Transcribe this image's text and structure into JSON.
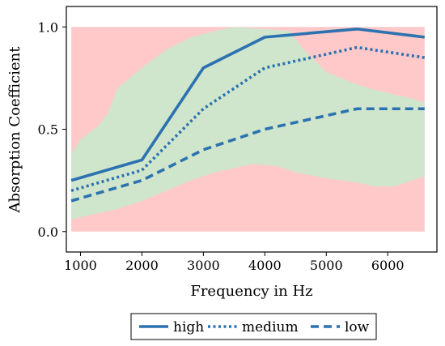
{
  "chart_data": {
    "type": "line",
    "xlabel": "Frequency in Hz",
    "ylabel": "Absorption Coefficient",
    "xlim": [
      770,
      6800
    ],
    "ylim": [
      -0.1,
      1.1
    ],
    "xticks": [
      1000,
      2000,
      3000,
      4000,
      5000,
      6000
    ],
    "yticks": [
      0.0,
      0.5,
      1.0
    ],
    "xtick_labels": [
      "1000",
      "2000",
      "3000",
      "4000",
      "5000",
      "6000"
    ],
    "ytick_labels": [
      "0.0",
      "0.5",
      "1.0"
    ],
    "grid": false,
    "legend_position": "bottom-center",
    "background_band": {
      "x_range": [
        850,
        6600
      ],
      "y_range": [
        0.0,
        1.0
      ],
      "color": "#ffc9c9"
    },
    "green_region": {
      "color": "#cfe6cc",
      "upper": [
        [
          850,
          0.38
        ],
        [
          1000,
          0.45
        ],
        [
          1300,
          0.52
        ],
        [
          1450,
          0.58
        ],
        [
          1600,
          0.7
        ],
        [
          2000,
          0.8
        ],
        [
          2400,
          0.89
        ],
        [
          2800,
          0.95
        ],
        [
          3200,
          0.98
        ],
        [
          3500,
          1.0
        ],
        [
          4000,
          0.99
        ],
        [
          4400,
          0.98
        ],
        [
          4600,
          0.9
        ],
        [
          5000,
          0.78
        ],
        [
          5400,
          0.73
        ],
        [
          5700,
          0.7
        ],
        [
          6100,
          0.67
        ],
        [
          6400,
          0.65
        ],
        [
          6600,
          0.63
        ]
      ],
      "lower": [
        [
          850,
          0.06
        ],
        [
          1000,
          0.07
        ],
        [
          1300,
          0.09
        ],
        [
          1450,
          0.1
        ],
        [
          1600,
          0.11
        ],
        [
          2000,
          0.15
        ],
        [
          2400,
          0.2
        ],
        [
          2800,
          0.25
        ],
        [
          3200,
          0.29
        ],
        [
          3500,
          0.31
        ],
        [
          3800,
          0.33
        ],
        [
          4200,
          0.32
        ],
        [
          4500,
          0.29
        ],
        [
          5000,
          0.26
        ],
        [
          5500,
          0.24
        ],
        [
          5800,
          0.22
        ],
        [
          6100,
          0.22
        ],
        [
          6400,
          0.25
        ],
        [
          6600,
          0.27
        ]
      ]
    },
    "series": [
      {
        "name": "high",
        "style": "solid",
        "color": "#2c72b0",
        "x": [
          850,
          2000,
          3000,
          4000,
          5500,
          6600
        ],
        "y": [
          0.25,
          0.35,
          0.8,
          0.95,
          0.99,
          0.95
        ]
      },
      {
        "name": "medium",
        "style": "dotted",
        "color": "#2c72b0",
        "x": [
          850,
          2000,
          3000,
          4000,
          5500,
          6600
        ],
        "y": [
          0.2,
          0.3,
          0.6,
          0.8,
          0.9,
          0.85
        ]
      },
      {
        "name": "low",
        "style": "dashed",
        "color": "#2c72b0",
        "x": [
          850,
          2000,
          3000,
          4000,
          5500,
          6600
        ],
        "y": [
          0.15,
          0.25,
          0.4,
          0.5,
          0.6,
          0.6
        ]
      }
    ]
  }
}
